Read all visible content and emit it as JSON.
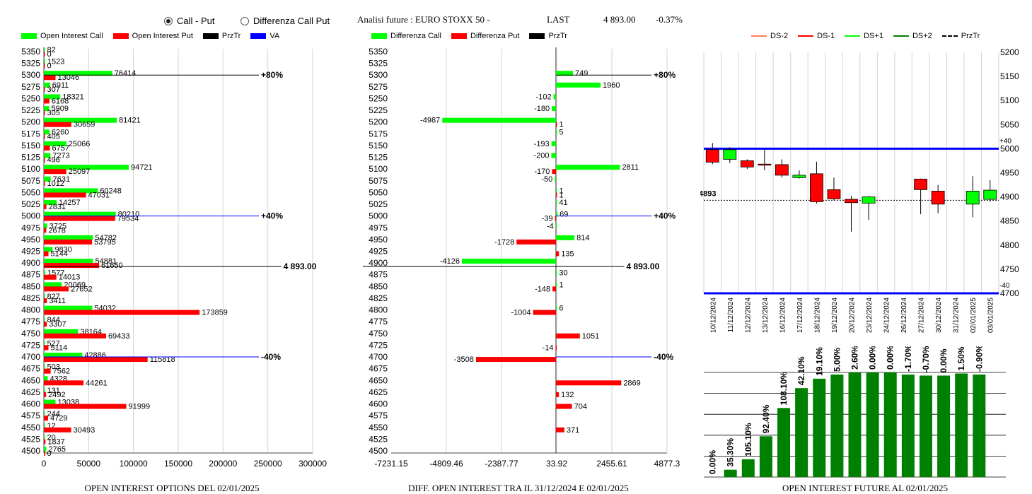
{
  "header": {
    "radio_call_put": "Call - Put",
    "radio_diff": "Differenza Call Put",
    "analysis_label": "Analisi future : EURO STOXX 50 -",
    "last_label": "LAST",
    "last_value": "4 893.00",
    "change_pct": "-0.37%"
  },
  "legends": {
    "left": [
      {
        "label": "Open Interest Call",
        "color": "#00ff00",
        "kind": "box"
      },
      {
        "label": "Open Interest Put",
        "color": "#ff0000",
        "kind": "box"
      },
      {
        "label": "PrzTr",
        "color": "#000000",
        "kind": "box"
      },
      {
        "label": "VA",
        "color": "#0000ff",
        "kind": "box"
      }
    ],
    "middle": [
      {
        "label": "Differenza Call",
        "color": "#00ff00",
        "kind": "box"
      },
      {
        "label": "Differenza Put",
        "color": "#ff0000",
        "kind": "box"
      },
      {
        "label": "PrzTr",
        "color": "#000000",
        "kind": "box"
      }
    ],
    "right": [
      {
        "label": "DS-2",
        "color": "#ff7f50",
        "kind": "line"
      },
      {
        "label": "DS-1",
        "color": "#ff0000",
        "kind": "line"
      },
      {
        "label": "DS+1",
        "color": "#00ff00",
        "kind": "line"
      },
      {
        "label": "DS+2",
        "color": "#008000",
        "kind": "line"
      },
      {
        "label": "PrzTr",
        "color": "#000000",
        "kind": "dash"
      }
    ]
  },
  "titles": {
    "left": "OPEN INTEREST OPTIONS DEL 02/01/2025",
    "middle": "DIFF. OPEN INTEREST TRA IL 31/12/2024 E 02/01/2025",
    "right": "OPEN INTEREST FUTURE AL 02/01/2025"
  },
  "colors": {
    "call": "#00ff00",
    "put": "#ff0000",
    "va": "#0000ff",
    "przTr": "#000000",
    "oi_bar": "#008000",
    "grid": "#d3d3d3"
  },
  "chart_data": [
    {
      "type": "bar",
      "orientation": "horizontal",
      "strikes": [
        5350,
        5325,
        5300,
        5275,
        5250,
        5225,
        5200,
        5175,
        5150,
        5125,
        5100,
        5075,
        5050,
        5025,
        5000,
        4975,
        4950,
        4925,
        4900,
        4875,
        4850,
        4825,
        4800,
        4775,
        4750,
        4725,
        4700,
        4675,
        4650,
        4625,
        4600,
        4575,
        4550,
        4525,
        4500
      ],
      "series": [
        {
          "name": "Open Interest Call",
          "values": [
            82,
            1523,
            76414,
            6911,
            18321,
            5909,
            81421,
            6260,
            25066,
            7273,
            94721,
            7631,
            60248,
            14257,
            80210,
            3725,
            54782,
            9830,
            54881,
            1577,
            20069,
            827,
            54032,
            844,
            38164,
            527,
            42886,
            503,
            4328,
            131,
            13038,
            244,
            12,
            20,
            2765
          ]
        },
        {
          "name": "Open Interest Put",
          "values": [
            0,
            0,
            13046,
            307,
            6168,
            305,
            30659,
            405,
            6757,
            496,
            25097,
            1012,
            47031,
            2831,
            79534,
            2678,
            53795,
            5144,
            61650,
            14013,
            27652,
            3411,
            173859,
            3307,
            69433,
            5114,
            115818,
            7562,
            44261,
            2492,
            91999,
            4729,
            30493,
            1837,
            0
          ]
        }
      ],
      "xlim": [
        0,
        300000
      ],
      "xticks": [
        "0",
        "50000",
        "100000",
        "150000",
        "200000",
        "250000",
        "300000"
      ],
      "markers": [
        {
          "strike": 5300,
          "label": "+80%",
          "color": "#000000",
          "end": 240000
        },
        {
          "strike": 5000,
          "label": "+40%",
          "color": "#0000ff",
          "end": 240000
        },
        {
          "strike": 4900,
          "label": "4 893.00",
          "color": "#000000",
          "end": 265000
        },
        {
          "strike": 4700,
          "label": "-40%",
          "color": "#0000ff",
          "end": 240000
        }
      ]
    },
    {
      "type": "bar",
      "orientation": "horizontal",
      "strikes": [
        5350,
        5325,
        5300,
        5275,
        5250,
        5225,
        5200,
        5175,
        5150,
        5125,
        5100,
        5075,
        5050,
        5025,
        5000,
        4975,
        4950,
        4925,
        4900,
        4875,
        4850,
        4825,
        4800,
        4775,
        4750,
        4725,
        4700,
        4675,
        4650,
        4625,
        4600,
        4575,
        4550,
        4525,
        4500
      ],
      "series": [
        {
          "name": "Differenza Call",
          "values": [
            null,
            null,
            749,
            1960,
            -102,
            -180,
            -4987,
            5,
            -193,
            -200,
            2811,
            -50,
            1,
            41,
            69,
            -4,
            814,
            null,
            -4126,
            30,
            1,
            null,
            6,
            null,
            null,
            null,
            null,
            null,
            null,
            null,
            null,
            null,
            null,
            null,
            null
          ]
        },
        {
          "name": "Differenza Put",
          "values": [
            null,
            null,
            null,
            null,
            null,
            null,
            1,
            null,
            null,
            null,
            -170,
            null,
            1,
            null,
            -39,
            null,
            -1728,
            135,
            null,
            null,
            -148,
            null,
            -1004,
            null,
            1051,
            -14,
            -3508,
            null,
            2869,
            132,
            704,
            null,
            371,
            null,
            null
          ]
        }
      ],
      "xlim": [
        -7231.15,
        4877.3
      ],
      "xticks": [
        "-7231.15",
        "-4809.46",
        "-2387.77",
        "33.92",
        "2455.61",
        "4877.3"
      ],
      "markers": [
        {
          "strike": 5300,
          "label": "+80%",
          "color": "#000000",
          "end": 4200
        },
        {
          "strike": 5000,
          "label": "+40%",
          "color": "#0000ff",
          "end": 4200
        },
        {
          "strike": 4900,
          "label": "4 893.00",
          "color": "#000000",
          "end": 3000
        },
        {
          "strike": 4700,
          "label": "-40%",
          "color": "#0000ff",
          "end": 4200
        }
      ]
    },
    {
      "type": "candlestick",
      "x": [
        "10/12/2024",
        "11/12/2024",
        "12/12/2024",
        "13/12/2024",
        "16/12/2024",
        "17/12/2024",
        "18/12/2024",
        "19/12/2024",
        "20/12/2024",
        "23/12/2024",
        "24/12/2024",
        "26/12/2024",
        "27/12/2024",
        "30/12/2024",
        "31/12/2024",
        "02/01/2025",
        "03/01/2025"
      ],
      "candles": [
        {
          "open": 4998,
          "close": 4972,
          "high": 5012,
          "low": 4968
        },
        {
          "open": 4978,
          "close": 4998,
          "high": 5003,
          "low": 4970
        },
        {
          "open": 4975,
          "close": 4962,
          "high": 4978,
          "low": 4958
        },
        {
          "open": 4968,
          "close": 4967,
          "high": 4998,
          "low": 4955
        },
        {
          "open": 4967,
          "close": 4945,
          "high": 4978,
          "low": 4940
        },
        {
          "open": 4940,
          "close": 4945,
          "high": 4955,
          "low": 4938
        },
        {
          "open": 4948,
          "close": 4890,
          "high": 4973,
          "low": 4886
        },
        {
          "open": 4915,
          "close": 4896,
          "high": 4940,
          "low": 4893
        },
        {
          "open": 4895,
          "close": 4888,
          "high": 4902,
          "low": 4828
        },
        {
          "open": 4887,
          "close": 4900,
          "high": 4902,
          "low": 4852
        },
        null,
        null,
        {
          "open": 4937,
          "close": 4915,
          "high": 4938,
          "low": 4864
        },
        {
          "open": 4912,
          "close": 4885,
          "high": 4925,
          "low": 4866
        },
        null,
        {
          "open": 4885,
          "close": 4912,
          "high": 4943,
          "low": 4858
        },
        {
          "open": 4895,
          "close": 4914,
          "high": 4935,
          "low": 4890
        }
      ],
      "ylim": [
        4700,
        5200
      ],
      "yticks": [
        "5200",
        "5150",
        "5100",
        "5050",
        "5000",
        "4950",
        "4900",
        "4850",
        "4800",
        "4750",
        "4700"
      ],
      "lines": [
        {
          "value": 5000,
          "label": "+40",
          "color": "#0000ff"
        },
        {
          "value": 4700,
          "label": "-40",
          "color": "#0000ff"
        },
        {
          "value": 4893,
          "label": "4893",
          "color": "#000000",
          "dashed": true
        }
      ]
    },
    {
      "type": "bar",
      "x": [
        "10/12/2024",
        "11/12/2024",
        "12/12/2024",
        "13/12/2024",
        "16/12/2024",
        "17/12/2024",
        "18/12/2024",
        "19/12/2024",
        "20/12/2024",
        "23/12/2024",
        "24/12/2024",
        "26/12/2024",
        "27/12/2024",
        "30/12/2024",
        "31/12/2024",
        "02/01/2025",
        "03/01/2025"
      ],
      "values": [
        0,
        7,
        17,
        39,
        66,
        85,
        94,
        98,
        100,
        100,
        100,
        98,
        97,
        97,
        99,
        98,
        null
      ],
      "value_labels": [
        "0.00%",
        "35.30%",
        "105.10%",
        "92.40%",
        "108.10%",
        "42.10%",
        "19.10%",
        "5.00%",
        "2.60%",
        "0.00%",
        "0.00%",
        "-1.70%",
        "-0.70%",
        "0.00%",
        "1.50%",
        "-0.90%",
        ""
      ]
    }
  ]
}
